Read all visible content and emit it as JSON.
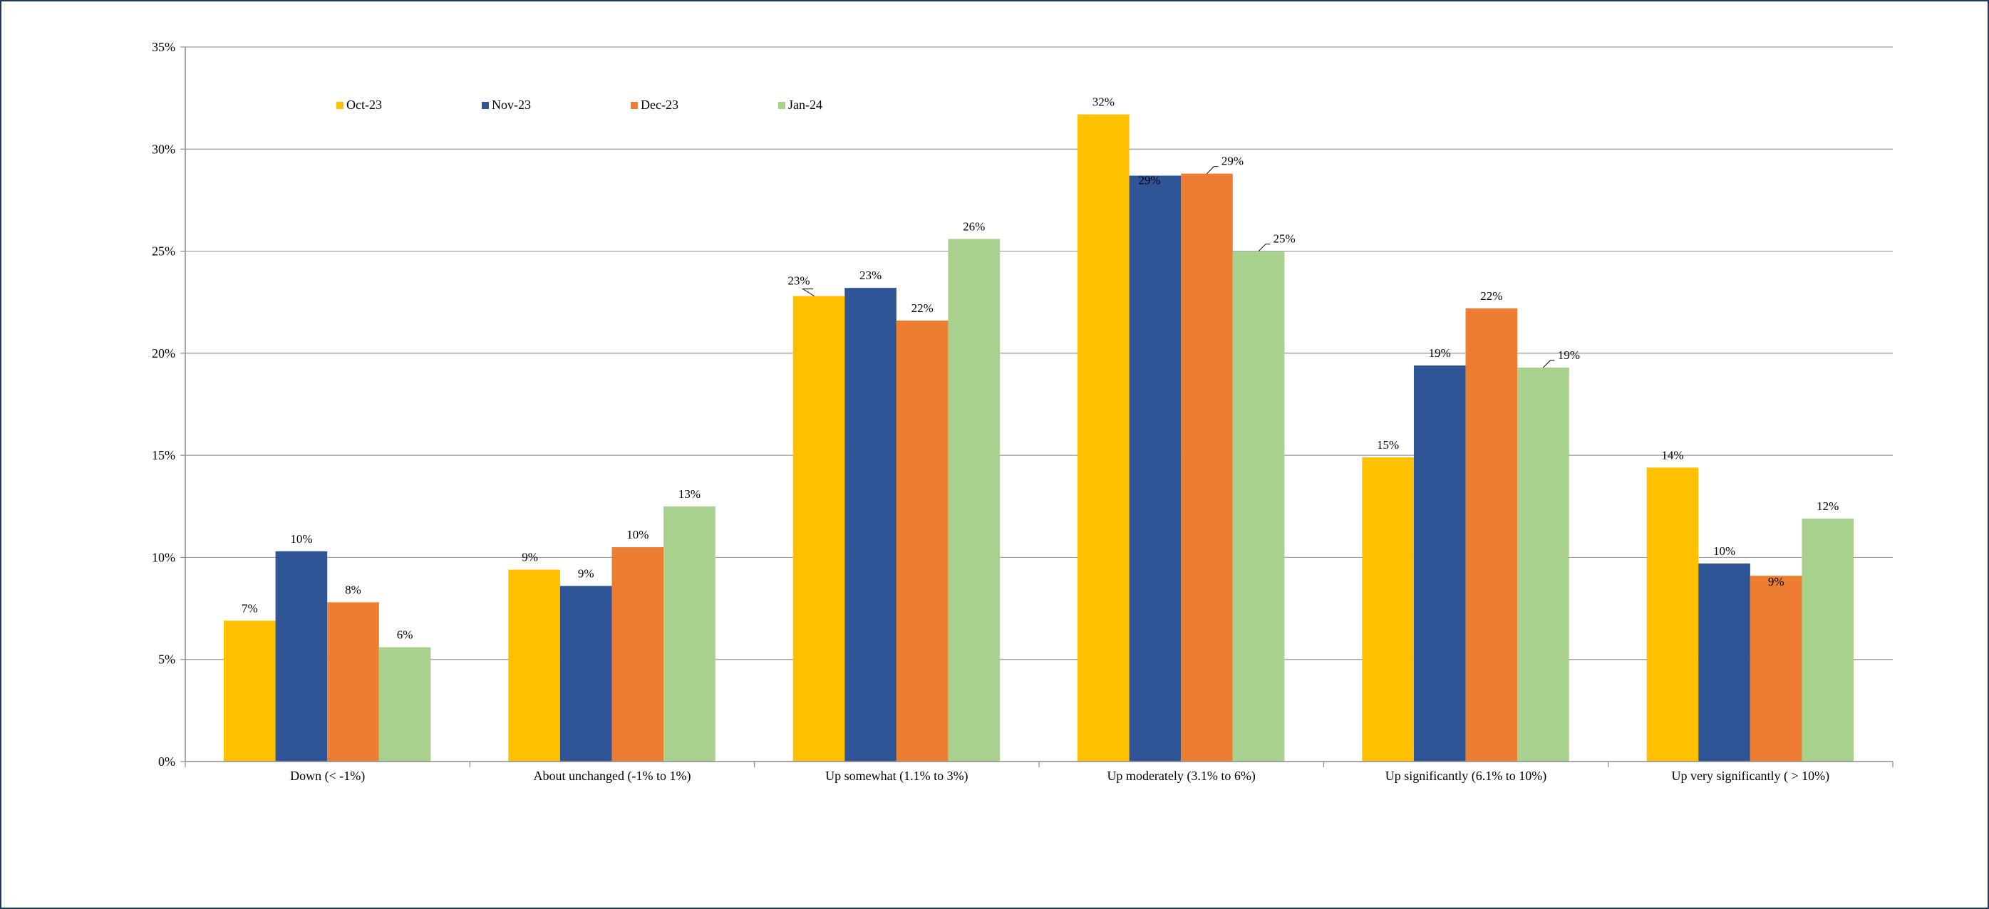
{
  "chart_data": {
    "type": "bar",
    "title": "",
    "xlabel": "",
    "ylabel": "",
    "ylim": [
      0,
      35
    ],
    "yticks": [
      "0%",
      "5%",
      "10%",
      "15%",
      "20%",
      "25%",
      "30%",
      "35%"
    ],
    "grid": true,
    "legend_position": "top-left",
    "categories": [
      "Down (< -1%)",
      "About unchanged (-1% to 1%)",
      "Up somewhat (1.1% to 3%)",
      "Up moderately (3.1% to 6%)",
      "Up significantly (6.1% to 10%)",
      "Up very significantly ( > 10%)"
    ],
    "series": [
      {
        "name": "Oct-23",
        "color": "#ffc000",
        "values": [
          6.9,
          9.4,
          22.8,
          31.7,
          14.9,
          14.4
        ],
        "labels": [
          "7%",
          "9%",
          "23%",
          "32%",
          "15%",
          "14%"
        ]
      },
      {
        "name": "Nov-23",
        "color": "#2f5597",
        "values": [
          10.3,
          8.6,
          23.2,
          28.7,
          19.4,
          9.7
        ],
        "labels": [
          "10%",
          "9%",
          "23%",
          "29%",
          "19%",
          "10%"
        ]
      },
      {
        "name": "Dec-23",
        "color": "#ed7d31",
        "values": [
          7.8,
          10.5,
          21.6,
          28.8,
          22.2,
          9.1
        ],
        "labels": [
          "8%",
          "10%",
          "22%",
          "29%",
          "22%",
          "9%"
        ]
      },
      {
        "name": "Jan-24",
        "color": "#a9d18e",
        "values": [
          5.6,
          12.5,
          25.6,
          25.0,
          19.3,
          11.9
        ],
        "labels": [
          "6%",
          "13%",
          "26%",
          "25%",
          "19%",
          "12%"
        ]
      }
    ]
  }
}
